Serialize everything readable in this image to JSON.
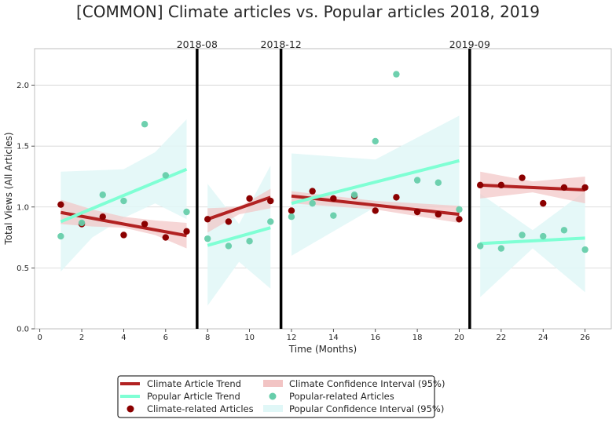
{
  "chart_data": {
    "type": "scatter",
    "title": "[COMMON] Climate articles vs. Popular articles 2018, 2019",
    "xlabel": "Time (Months)",
    "ylabel": "Total Views (All Articles)",
    "xlim": [
      -0.25,
      27.25
    ],
    "ylim": [
      0.0,
      2.3
    ],
    "x_ticks": [
      0,
      2,
      4,
      6,
      8,
      10,
      12,
      14,
      16,
      18,
      20,
      22,
      24,
      26
    ],
    "y_ticks": [
      0.0,
      0.5,
      1.0,
      1.5,
      2.0
    ],
    "grid": "horizontal",
    "legend_position": "bottom-center",
    "colors": {
      "climate_trend": "#b22222",
      "climate_points": "#8b0000",
      "climate_ci": "#f2c4c4",
      "popular_trend": "#7fffd4",
      "popular_points": "#66cdaa",
      "popular_ci": "#e0f7f7",
      "breakline": "#000000"
    },
    "breaks": [
      {
        "x": 7.5,
        "label": "2018-08"
      },
      {
        "x": 11.5,
        "label": "2018-12"
      },
      {
        "x": 20.5,
        "label": "2019-09"
      }
    ],
    "climate_points": {
      "name": "Climate-related Articles",
      "x": [
        1,
        2,
        3,
        4,
        5,
        6,
        7,
        8,
        9,
        10,
        11,
        12,
        13,
        14,
        15,
        16,
        17,
        18,
        19,
        20,
        21,
        22,
        23,
        24,
        25,
        26
      ],
      "y": [
        1.02,
        0.86,
        0.92,
        0.77,
        0.86,
        0.75,
        0.8,
        0.9,
        0.88,
        1.07,
        1.05,
        0.97,
        1.13,
        1.07,
        1.09,
        0.97,
        1.08,
        0.96,
        0.94,
        0.9,
        1.18,
        1.18,
        1.24,
        1.03,
        1.16,
        1.16
      ]
    },
    "popular_points": {
      "name": "Popular-related Articles",
      "x": [
        1,
        2,
        3,
        4,
        5,
        6,
        7,
        8,
        9,
        10,
        11,
        12,
        13,
        14,
        15,
        16,
        17,
        18,
        19,
        20,
        21,
        22,
        23,
        24,
        25,
        26
      ],
      "y": [
        0.76,
        0.87,
        1.1,
        1.05,
        1.68,
        1.26,
        0.96,
        0.74,
        0.68,
        0.72,
        0.88,
        0.92,
        1.03,
        0.93,
        1.1,
        1.54,
        2.09,
        1.22,
        1.2,
        0.98,
        0.68,
        0.66,
        0.77,
        0.76,
        0.81,
        0.65
      ]
    },
    "climate_trend": {
      "name": "Climate Article Trend",
      "segments": [
        {
          "x": [
            1,
            7
          ],
          "y": [
            0.955,
            0.765
          ]
        },
        {
          "x": [
            8,
            11
          ],
          "y": [
            0.9,
            1.08
          ]
        },
        {
          "x": [
            12,
            20
          ],
          "y": [
            1.09,
            0.94
          ]
        },
        {
          "x": [
            21,
            26
          ],
          "y": [
            1.18,
            1.14
          ]
        }
      ]
    },
    "popular_trend": {
      "name": "Popular Article Trend",
      "segments": [
        {
          "x": [
            1,
            7
          ],
          "y": [
            0.88,
            1.31
          ]
        },
        {
          "x": [
            8,
            11
          ],
          "y": [
            0.685,
            0.83
          ]
        },
        {
          "x": [
            12,
            20
          ],
          "y": [
            1.03,
            1.38
          ]
        },
        {
          "x": [
            21,
            26
          ],
          "y": [
            0.7,
            0.745
          ]
        }
      ]
    },
    "climate_ci": {
      "name": "Climate Confidence Interval (95%)",
      "segments": [
        {
          "x": [
            1,
            2.5,
            4,
            5.5,
            7
          ],
          "upper": [
            1.06,
            0.98,
            0.92,
            0.89,
            0.87
          ],
          "lower": [
            0.86,
            0.84,
            0.83,
            0.77,
            0.66
          ]
        },
        {
          "x": [
            8,
            9.5,
            11
          ],
          "upper": [
            0.99,
            1.0,
            1.15
          ],
          "lower": [
            0.79,
            0.94,
            0.99
          ]
        },
        {
          "x": [
            12,
            16,
            20
          ],
          "upper": [
            1.13,
            1.05,
            1.01
          ],
          "lower": [
            1.03,
            0.98,
            0.87
          ]
        },
        {
          "x": [
            21,
            23.5,
            26
          ],
          "upper": [
            1.29,
            1.21,
            1.25
          ],
          "lower": [
            1.07,
            1.12,
            1.03
          ]
        }
      ]
    },
    "popular_ci": {
      "name": "Popular Confidence Interval (95%)",
      "segments": [
        {
          "x": [
            1,
            2.5,
            4,
            5.5,
            7
          ],
          "upper": [
            1.29,
            1.3,
            1.31,
            1.45,
            1.72
          ],
          "lower": [
            0.47,
            0.75,
            0.91,
            1.03,
            0.9
          ]
        },
        {
          "x": [
            8,
            9.5,
            11
          ],
          "upper": [
            1.19,
            0.86,
            1.34
          ],
          "lower": [
            0.19,
            0.55,
            0.33
          ]
        },
        {
          "x": [
            12,
            16,
            20
          ],
          "upper": [
            1.44,
            1.39,
            1.75
          ],
          "lower": [
            0.6,
            1.0,
            1.01
          ]
        },
        {
          "x": [
            21,
            23.5,
            26
          ],
          "upper": [
            1.11,
            0.81,
            1.13
          ],
          "lower": [
            0.26,
            0.66,
            0.3
          ]
        }
      ]
    }
  }
}
